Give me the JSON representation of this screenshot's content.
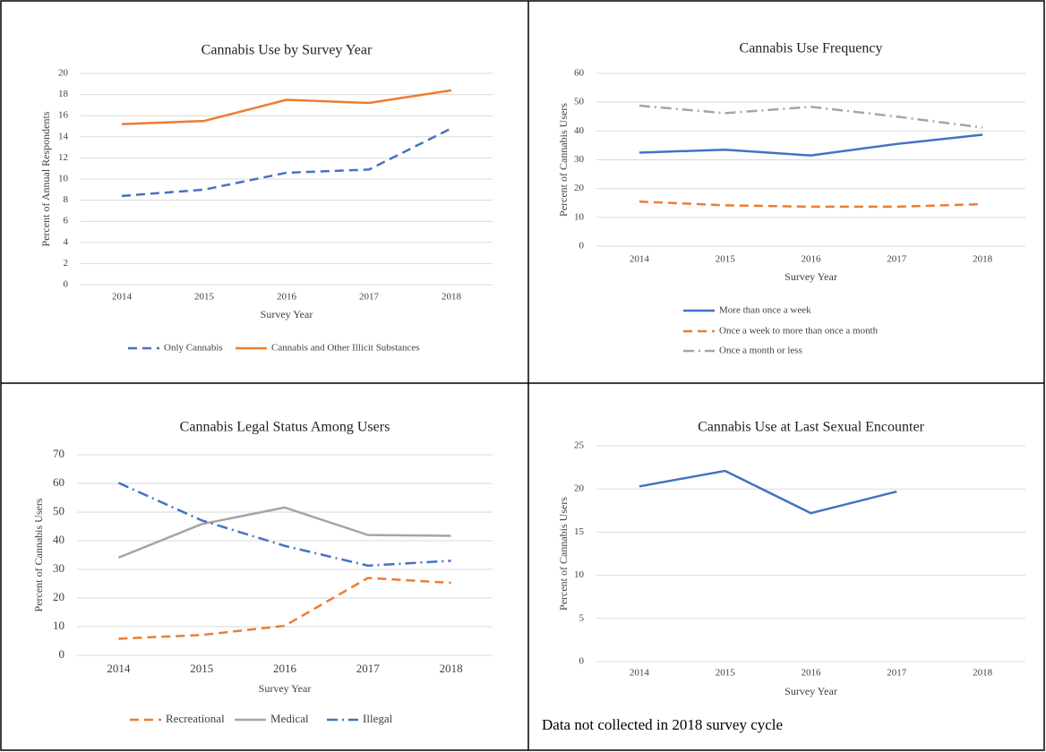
{
  "chart_data": [
    {
      "type": "line",
      "title": "Cannabis Use by Survey Year",
      "x_label": "Survey Year",
      "y_label": "Percent of Annual Respondents",
      "categories": [
        "2014",
        "2015",
        "2016",
        "2017",
        "2018"
      ],
      "series": [
        {
          "name": "Only Cannabis",
          "color": "#4472c4",
          "dash": "dashed",
          "values": [
            8.4,
            9.0,
            10.6,
            10.9,
            14.8
          ]
        },
        {
          "name": "Cannabis and Other Illicit Substances",
          "color": "#ed7d31",
          "dash": "solid",
          "values": [
            15.2,
            15.5,
            17.5,
            17.2,
            18.4
          ]
        }
      ],
      "ylim": [
        0,
        20
      ],
      "yticks": [
        0,
        2,
        4,
        6,
        8,
        10,
        12,
        14,
        16,
        18,
        20
      ],
      "grid": true,
      "legend": "bottom"
    },
    {
      "type": "line",
      "title": "Cannabis Use Frequency",
      "x_label": "Survey Year",
      "y_label": "Percent of Cannabis Users",
      "categories": [
        "2014",
        "2015",
        "2016",
        "2017",
        "2018"
      ],
      "series": [
        {
          "name": "More than once a week",
          "color": "#4472c4",
          "dash": "solid",
          "values": [
            32.5,
            33.5,
            31.5,
            35.5,
            38.7
          ]
        },
        {
          "name": "Once a week to more than once a month",
          "color": "#ed7d31",
          "dash": "dashed",
          "values": [
            15.5,
            14.2,
            13.7,
            13.7,
            14.6
          ]
        },
        {
          "name": "Once a month or less",
          "color": "#a5a5a5",
          "dash": "dashdot",
          "values": [
            48.8,
            46.2,
            48.4,
            45.0,
            41.2
          ]
        }
      ],
      "ylim": [
        0,
        60
      ],
      "yticks": [
        0,
        10,
        20,
        30,
        40,
        50,
        60
      ],
      "grid": true,
      "legend": "bottom"
    },
    {
      "type": "line",
      "title": "Cannabis Legal Status Among Users",
      "x_label": "Survey Year",
      "y_label": "Percent of Cannabis Users",
      "categories": [
        "2014",
        "2015",
        "2016",
        "2017",
        "2018"
      ],
      "series": [
        {
          "name": "Recreational",
          "color": "#ed7d31",
          "dash": "dashed",
          "values": [
            5.8,
            7.1,
            10.3,
            27.0,
            25.3
          ]
        },
        {
          "name": "Medical",
          "color": "#a5a5a5",
          "dash": "solid",
          "values": [
            34.1,
            45.8,
            51.6,
            42.0,
            41.7
          ]
        },
        {
          "name": "Illegal",
          "color": "#4472c4",
          "dash": "dashdot",
          "values": [
            60.2,
            47.1,
            38.2,
            31.3,
            33.0
          ]
        }
      ],
      "ylim": [
        0,
        70
      ],
      "yticks": [
        0,
        10,
        20,
        30,
        40,
        50,
        60,
        70
      ],
      "grid": true,
      "legend": "bottom"
    },
    {
      "type": "line",
      "title": "Cannabis Use at Last Sexual Encounter",
      "x_label": "Survey Year",
      "y_label": "Percent of Cannabis Users",
      "categories": [
        "2014",
        "2015",
        "2016",
        "2017",
        "2018"
      ],
      "values": [
        20.3,
        22.1,
        17.2,
        19.7,
        null
      ],
      "color": "#4472c4",
      "dash": "solid",
      "ylim": [
        0,
        25
      ],
      "yticks": [
        0,
        5,
        10,
        15,
        20,
        25
      ],
      "grid": true,
      "note": "Data not collected in 2018 survey cycle"
    }
  ]
}
